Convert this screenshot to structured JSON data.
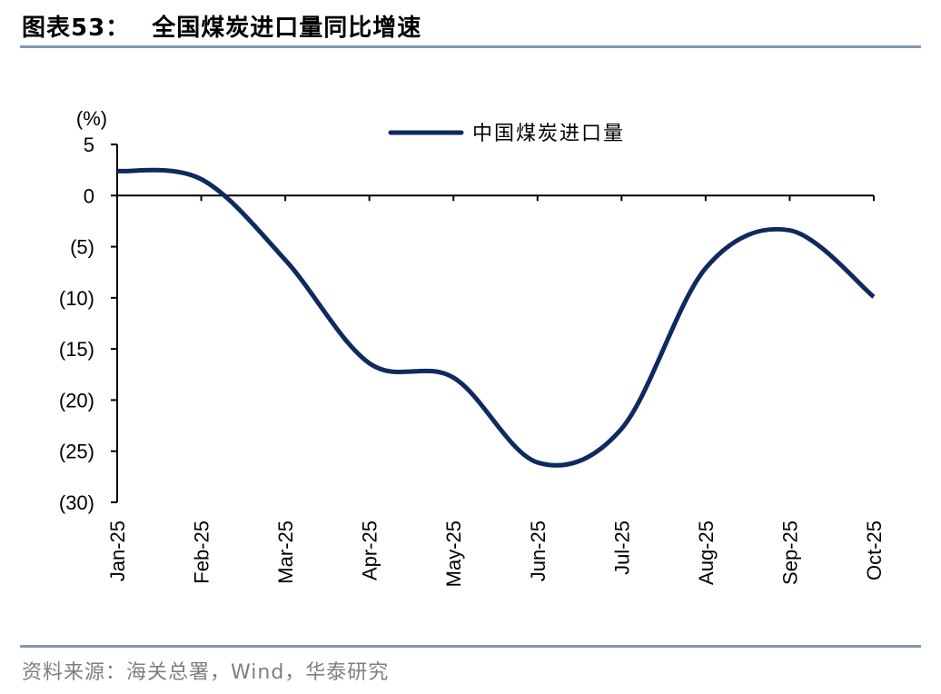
{
  "header": {
    "figure_label": "图表53：",
    "title": "全国煤炭进口量同比增速"
  },
  "source": "资料来源：海关总署，Wind，华泰研究",
  "colors": {
    "series": "#0f2a5f",
    "axis": "#000000",
    "rule": "#8497b0",
    "source_text": "#7f7f7f"
  },
  "chart_data": {
    "type": "line",
    "ylabel": "(%)",
    "categories": [
      "Jan-25",
      "Feb-25",
      "Mar-25",
      "Apr-25",
      "May-25",
      "Jun-25",
      "Jul-25",
      "Aug-25",
      "Sep-25",
      "Oct-25"
    ],
    "ylim": [
      -30,
      5
    ],
    "yticks": [
      5,
      0,
      -5,
      -10,
      -15,
      -20,
      -25,
      -30
    ],
    "ytick_labels": [
      "5",
      "0",
      "(5)",
      "(10)",
      "(15)",
      "(20)",
      "(25)",
      "(30)"
    ],
    "series": [
      {
        "name": "中国煤炭进口量",
        "values": [
          2.4,
          1.6,
          -6.3,
          -16.4,
          -17.8,
          -26.1,
          -22.8,
          -7.1,
          -3.4,
          -9.9
        ]
      }
    ],
    "legend_position": "top-center",
    "grid": false,
    "smooth": true
  }
}
